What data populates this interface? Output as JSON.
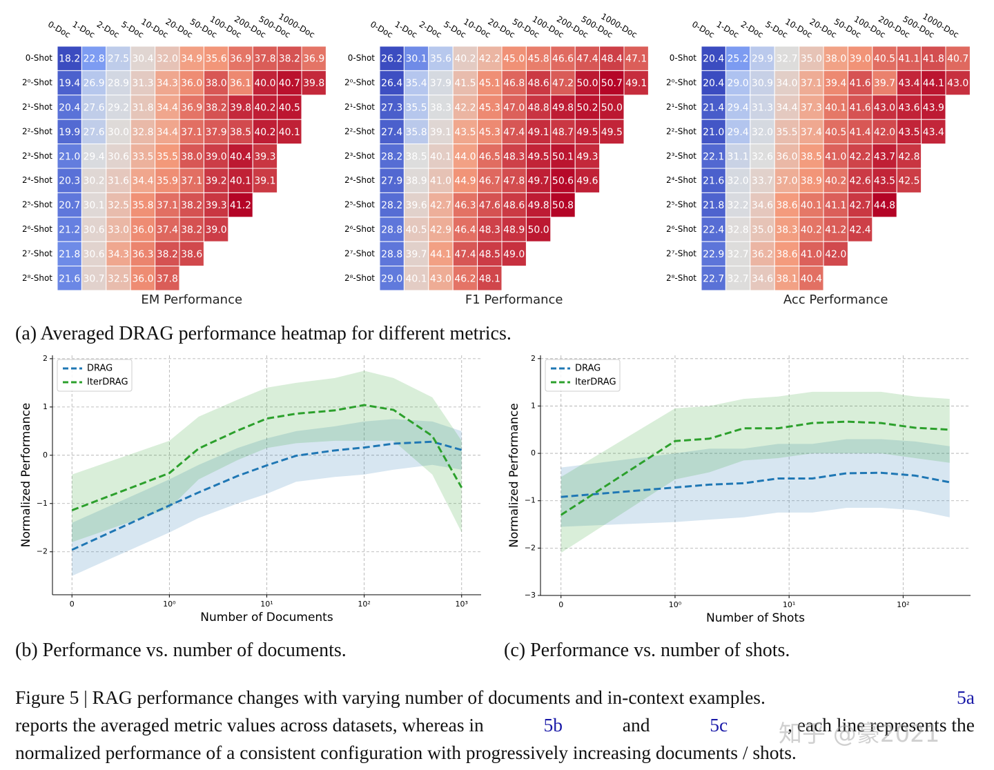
{
  "chart_data": [
    {
      "type": "heatmap",
      "title": "EM Performance",
      "colormap": "coolwarm",
      "x_categories": [
        "0-Doc",
        "1-Doc",
        "2-Doc",
        "5-Doc",
        "10-Doc",
        "20-Doc",
        "50-Doc",
        "100-Doc",
        "200-Doc",
        "500-Doc",
        "1000-Doc"
      ],
      "y_categories": [
        "0-Shot",
        "2⁰-Shot",
        "2¹-Shot",
        "2²-Shot",
        "2³-Shot",
        "2⁴-Shot",
        "2⁵-Shot",
        "2⁶-Shot",
        "2⁷-Shot",
        "2⁸-Shot"
      ],
      "values": [
        [
          18.2,
          22.8,
          27.5,
          30.4,
          32.0,
          34.9,
          35.6,
          36.9,
          37.8,
          38.2,
          36.9
        ],
        [
          19.4,
          26.9,
          28.9,
          31.3,
          34.3,
          36.0,
          38.0,
          36.1,
          40.0,
          40.7,
          39.8
        ],
        [
          20.4,
          27.6,
          29.2,
          31.8,
          34.4,
          36.9,
          38.2,
          39.8,
          40.2,
          40.5,
          null
        ],
        [
          19.9,
          27.6,
          30.0,
          32.8,
          34.4,
          37.1,
          37.9,
          38.5,
          40.2,
          40.1,
          null
        ],
        [
          21.0,
          29.4,
          30.6,
          33.5,
          35.5,
          38.0,
          39.0,
          40.4,
          39.3,
          null,
          null
        ],
        [
          20.3,
          30.2,
          31.6,
          34.4,
          35.9,
          37.1,
          39.2,
          40.1,
          39.1,
          null,
          null
        ],
        [
          20.7,
          30.1,
          32.5,
          35.8,
          37.1,
          38.2,
          39.3,
          41.2,
          null,
          null,
          null
        ],
        [
          21.2,
          30.6,
          33.0,
          36.0,
          37.4,
          38.2,
          39.0,
          null,
          null,
          null,
          null
        ],
        [
          21.8,
          30.6,
          34.3,
          36.3,
          38.2,
          38.6,
          null,
          null,
          null,
          null,
          null
        ],
        [
          21.6,
          30.7,
          32.5,
          36.0,
          37.8,
          null,
          null,
          null,
          null,
          null,
          null
        ]
      ]
    },
    {
      "type": "heatmap",
      "title": "F1 Performance",
      "colormap": "coolwarm",
      "x_categories": [
        "0-Doc",
        "1-Doc",
        "2-Doc",
        "5-Doc",
        "10-Doc",
        "20-Doc",
        "50-Doc",
        "100-Doc",
        "200-Doc",
        "500-Doc",
        "1000-Doc"
      ],
      "y_categories": [
        "0-Shot",
        "2⁰-Shot",
        "2¹-Shot",
        "2²-Shot",
        "2³-Shot",
        "2⁴-Shot",
        "2⁵-Shot",
        "2⁶-Shot",
        "2⁷-Shot",
        "2⁸-Shot"
      ],
      "values": [
        [
          26.2,
          30.1,
          35.6,
          40.2,
          42.2,
          45.0,
          45.8,
          46.6,
          47.4,
          48.4,
          47.1
        ],
        [
          26.4,
          35.4,
          37.9,
          41.5,
          45.1,
          46.8,
          48.6,
          47.2,
          50.0,
          50.7,
          49.1
        ],
        [
          27.3,
          35.5,
          38.3,
          42.2,
          45.3,
          47.0,
          48.8,
          49.8,
          50.2,
          50.0,
          null
        ],
        [
          27.4,
          35.8,
          39.1,
          43.5,
          45.3,
          47.4,
          49.1,
          48.7,
          49.5,
          49.5,
          null
        ],
        [
          28.2,
          38.5,
          40.1,
          44.0,
          46.5,
          48.3,
          49.5,
          50.1,
          49.3,
          null,
          null
        ],
        [
          27.9,
          38.9,
          41.0,
          44.9,
          46.7,
          47.8,
          49.7,
          50.6,
          49.6,
          null,
          null
        ],
        [
          28.2,
          39.6,
          42.7,
          46.3,
          47.6,
          48.6,
          49.8,
          50.8,
          null,
          null,
          null
        ],
        [
          28.8,
          40.5,
          42.9,
          46.4,
          48.3,
          48.9,
          50.0,
          null,
          null,
          null,
          null
        ],
        [
          28.8,
          39.7,
          44.1,
          47.4,
          48.5,
          49.0,
          null,
          null,
          null,
          null,
          null
        ],
        [
          29.0,
          40.1,
          43.0,
          46.2,
          48.1,
          null,
          null,
          null,
          null,
          null,
          null
        ]
      ]
    },
    {
      "type": "heatmap",
      "title": "Acc Performance",
      "colormap": "coolwarm",
      "x_categories": [
        "0-Doc",
        "1-Doc",
        "2-Doc",
        "5-Doc",
        "10-Doc",
        "20-Doc",
        "50-Doc",
        "100-Doc",
        "200-Doc",
        "500-Doc",
        "1000-Doc"
      ],
      "y_categories": [
        "0-Shot",
        "2⁰-Shot",
        "2¹-Shot",
        "2²-Shot",
        "2³-Shot",
        "2⁴-Shot",
        "2⁵-Shot",
        "2⁶-Shot",
        "2⁷-Shot",
        "2⁸-Shot"
      ],
      "values": [
        [
          20.4,
          25.2,
          29.9,
          32.7,
          35.0,
          38.0,
          39.0,
          40.5,
          41.1,
          41.8,
          40.7
        ],
        [
          20.4,
          29.0,
          30.9,
          34.0,
          37.1,
          39.4,
          41.6,
          39.7,
          43.4,
          44.1,
          43.0
        ],
        [
          21.4,
          29.4,
          31.3,
          34.4,
          37.3,
          40.1,
          41.6,
          43.0,
          43.6,
          43.9,
          null
        ],
        [
          21.0,
          29.4,
          32.0,
          35.5,
          37.4,
          40.5,
          41.4,
          42.0,
          43.5,
          43.4,
          null
        ],
        [
          22.1,
          31.1,
          32.6,
          36.0,
          38.5,
          41.0,
          42.2,
          43.7,
          42.8,
          null,
          null
        ],
        [
          21.6,
          32.0,
          33.7,
          37.0,
          38.9,
          40.2,
          42.6,
          43.5,
          42.5,
          null,
          null
        ],
        [
          21.8,
          32.2,
          34.6,
          38.6,
          40.1,
          41.1,
          42.7,
          44.8,
          null,
          null,
          null
        ],
        [
          22.4,
          32.8,
          35.0,
          38.3,
          40.2,
          41.2,
          42.4,
          null,
          null,
          null,
          null
        ],
        [
          22.9,
          32.7,
          36.2,
          38.6,
          41.0,
          42.0,
          null,
          null,
          null,
          null,
          null
        ],
        [
          22.7,
          32.7,
          34.6,
          38.1,
          40.4,
          null,
          null,
          null,
          null,
          null,
          null
        ]
      ]
    },
    {
      "type": "line",
      "x_label": "Number of Documents",
      "y_label": "Normalized Performance",
      "xscale": "symlog",
      "grid": true,
      "legend": "upper left",
      "x": [
        0,
        1,
        2,
        5,
        10,
        20,
        50,
        100,
        200,
        500,
        1000
      ],
      "xlim": [
        -0.2,
        1585
      ],
      "xticks": [
        0,
        {
          "value": 1,
          "label": "10⁰"
        },
        {
          "value": 10,
          "label": "10¹"
        },
        {
          "value": 100,
          "label": "10²"
        },
        {
          "value": 1000,
          "label": "10³"
        }
      ],
      "ylim": [
        -2.89,
        2.07
      ],
      "yticks": [
        {
          "value": -2,
          "label": "−2"
        },
        {
          "value": -1,
          "label": "−1"
        },
        0,
        1,
        2
      ],
      "series": [
        {
          "name": "DRAG",
          "color": "#1f77b4",
          "values": [
            -1.96,
            -1.04,
            -0.77,
            -0.43,
            -0.21,
            -0.01,
            0.1,
            0.16,
            0.24,
            0.28,
            0.11
          ],
          "lower": [
            -2.5,
            -1.6,
            -1.3,
            -1.0,
            -0.8,
            -0.55,
            -0.45,
            -0.4,
            -0.3,
            -0.2,
            -0.3
          ],
          "upper": [
            -1.4,
            -0.5,
            -0.2,
            0.15,
            0.35,
            0.5,
            0.6,
            0.7,
            0.75,
            0.7,
            0.5
          ]
        },
        {
          "name": "IterDRAG",
          "color": "#2ca02c",
          "values": [
            -1.14,
            -0.37,
            0.14,
            0.51,
            0.76,
            0.86,
            0.93,
            1.04,
            0.94,
            0.4,
            -0.67
          ],
          "lower": [
            -1.8,
            -1.1,
            -0.5,
            -0.1,
            0.15,
            0.25,
            0.3,
            0.3,
            0.3,
            -0.4,
            -1.6
          ],
          "upper": [
            -0.4,
            0.3,
            0.8,
            1.15,
            1.4,
            1.5,
            1.6,
            1.75,
            1.6,
            1.2,
            0.3
          ]
        }
      ]
    },
    {
      "type": "line",
      "x_label": "Number of Shots",
      "y_label": "Normalized Performance",
      "xscale": "symlog",
      "grid": true,
      "legend": "upper left",
      "x": [
        0,
        1,
        2,
        4,
        8,
        16,
        32,
        64,
        128,
        256
      ],
      "xlim": [
        -0.18,
        390
      ],
      "xticks": [
        0,
        {
          "value": 1,
          "label": "10⁰"
        },
        {
          "value": 10,
          "label": "10¹"
        },
        {
          "value": 100,
          "label": "10²"
        }
      ],
      "ylim": [
        -3,
        2.07
      ],
      "yticks": [
        {
          "value": -3,
          "label": "−3"
        },
        {
          "value": -2,
          "label": "−2"
        },
        {
          "value": -1,
          "label": "−1"
        },
        0,
        1,
        2
      ],
      "series": [
        {
          "name": "DRAG",
          "color": "#1f77b4",
          "values": [
            -0.92,
            -0.72,
            -0.66,
            -0.63,
            -0.53,
            -0.53,
            -0.42,
            -0.41,
            -0.47,
            -0.61
          ],
          "lower": [
            -1.55,
            -1.45,
            -1.4,
            -1.35,
            -1.25,
            -1.25,
            -1.15,
            -1.15,
            -1.2,
            -1.35
          ],
          "upper": [
            -0.3,
            0.0,
            0.1,
            0.1,
            0.2,
            0.2,
            0.3,
            0.3,
            0.25,
            0.15
          ]
        },
        {
          "name": "IterDRAG",
          "color": "#2ca02c",
          "values": [
            -1.3,
            0.26,
            0.31,
            0.53,
            0.53,
            0.64,
            0.67,
            0.64,
            0.54,
            0.5
          ],
          "lower": [
            -2.1,
            -0.55,
            -0.4,
            -0.15,
            -0.1,
            0.0,
            0.0,
            0.0,
            -0.1,
            -0.2
          ],
          "upper": [
            -0.5,
            0.95,
            1.0,
            1.15,
            1.2,
            1.3,
            1.3,
            1.3,
            1.2,
            1.15
          ]
        }
      ]
    }
  ],
  "subcaptions": [
    "(a) Averaged DRAG performance heatmap for different metrics.",
    "(b) Performance vs. number of documents.",
    "(c) Performance vs. number of shots."
  ],
  "caption": {
    "lines": [
      [
        "Figure 5 | RAG performance changes with varying number of documents and in-context examples.",
        "5a"
      ],
      [
        "reports the averaged metric values across datasets, whereas in",
        "5b",
        "and",
        "5c",
        ", each line represents the"
      ],
      [
        "normalized performance of a consistent configuration with progressively increasing documents / shots."
      ]
    ]
  },
  "watermark": "知乎 @豪2021"
}
